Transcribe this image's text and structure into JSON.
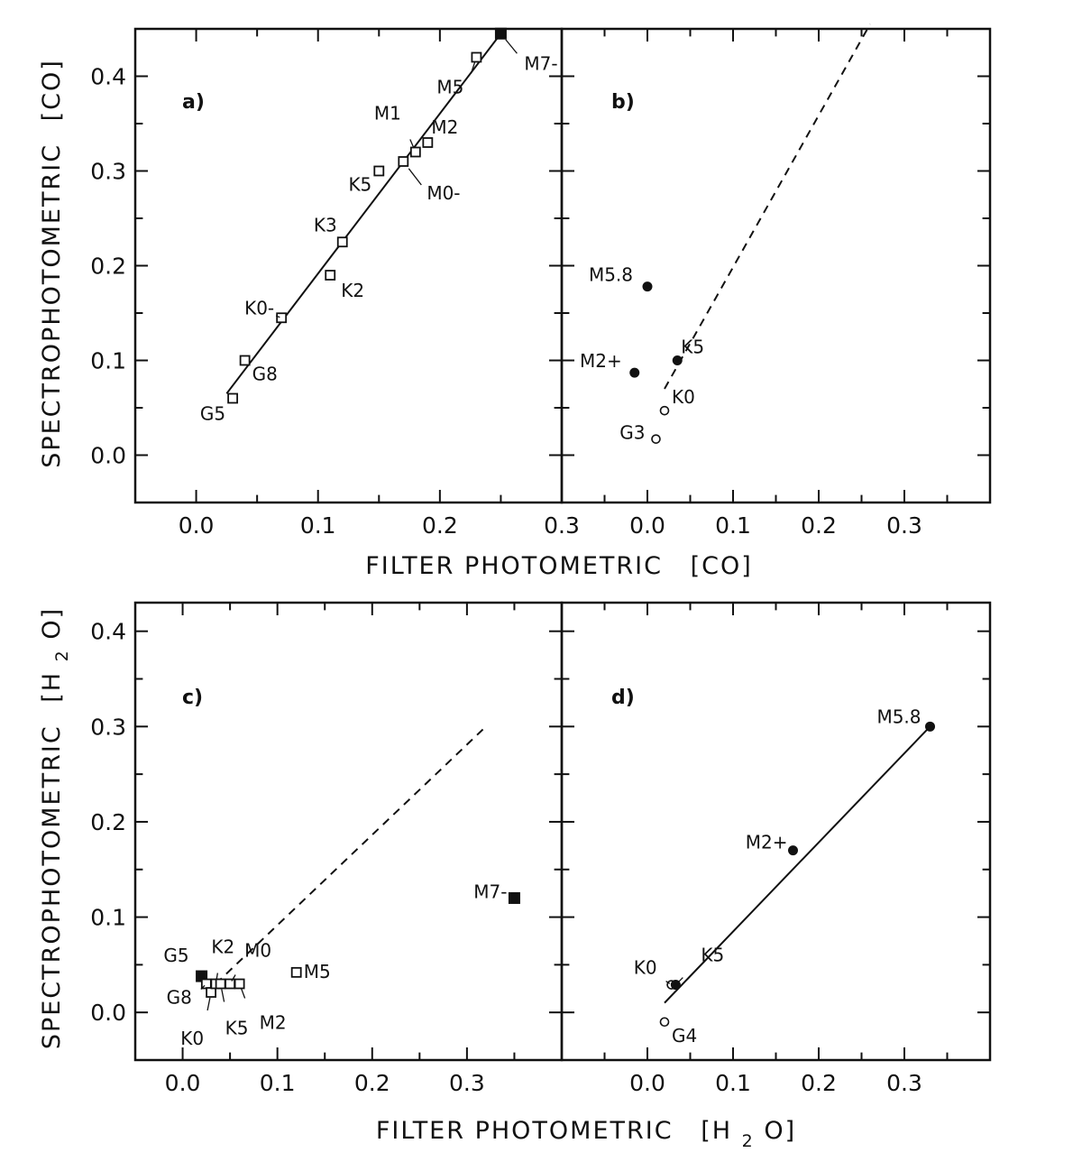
{
  "figure": {
    "top_xlabel": {
      "main": "FILTER PHOTOMETRIC",
      "unit": "[CO]"
    },
    "bottom_xlabel": {
      "main": "FILTER PHOTOMETRIC",
      "unit_prefix": "[H",
      "unit_sub": "2",
      "unit_suffix": "O]"
    },
    "top_ylabel": {
      "main": "SPECTROPHOTOMETRIC",
      "unit": "[CO]"
    },
    "bottom_ylabel": {
      "main": "SPECTROPHOTOMETRIC",
      "unit_prefix": "[H",
      "unit_sub": "2",
      "unit_suffix": "O]"
    }
  },
  "chart_data": [
    {
      "type": "scatter",
      "panel": "a)",
      "xlabel": "FILTER PHOTOMETRIC [CO]",
      "ylabel": "SPECTROPHOTOMETRIC [CO]",
      "xlim": [
        -0.05,
        0.3
      ],
      "ylim": [
        -0.05,
        0.45
      ],
      "xticks": [
        "0.0",
        "0.1",
        "0.2",
        "0.3"
      ],
      "yticks": [
        "0.0",
        "0.1",
        "0.2",
        "0.3",
        "0.4"
      ],
      "fit_line": {
        "style": "solid",
        "x": [
          0.025,
          0.25
        ],
        "y": [
          0.065,
          0.445
        ]
      },
      "points": [
        {
          "label": "G5",
          "x": 0.03,
          "y": 0.06,
          "marker": "open-square"
        },
        {
          "label": "G8",
          "x": 0.04,
          "y": 0.1,
          "marker": "open-square"
        },
        {
          "label": "K0-",
          "x": 0.07,
          "y": 0.145,
          "marker": "open-square"
        },
        {
          "label": "K2",
          "x": 0.11,
          "y": 0.19,
          "marker": "open-square"
        },
        {
          "label": "K3",
          "x": 0.12,
          "y": 0.225,
          "marker": "open-square"
        },
        {
          "label": "K5",
          "x": 0.15,
          "y": 0.3,
          "marker": "open-square"
        },
        {
          "label": "M0-",
          "x": 0.17,
          "y": 0.31,
          "marker": "open-square"
        },
        {
          "label": "M1",
          "x": 0.18,
          "y": 0.32,
          "marker": "open-square"
        },
        {
          "label": "M2",
          "x": 0.19,
          "y": 0.33,
          "marker": "open-square"
        },
        {
          "label": "M5",
          "x": 0.23,
          "y": 0.42,
          "marker": "open-square"
        },
        {
          "label": "M7-",
          "x": 0.25,
          "y": 0.445,
          "marker": "filled-square"
        }
      ]
    },
    {
      "type": "scatter",
      "panel": "b)",
      "xlabel": "FILTER PHOTOMETRIC [CO]",
      "ylabel": "SPECTROPHOTOMETRIC [CO]",
      "xlim": [
        -0.1,
        0.4
      ],
      "ylim": [
        -0.05,
        0.45
      ],
      "xticks": [
        "0.0",
        "0.1",
        "0.2",
        "0.3"
      ],
      "fit_line": {
        "style": "dashed",
        "x": [
          0.02,
          0.26
        ],
        "y": [
          0.07,
          0.455
        ]
      },
      "points": [
        {
          "label": "G3",
          "x": 0.01,
          "y": 0.017,
          "marker": "open-circle"
        },
        {
          "label": "K0",
          "x": 0.02,
          "y": 0.047,
          "marker": "open-circle"
        },
        {
          "label": "K5",
          "x": 0.035,
          "y": 0.1,
          "marker": "filled-circle"
        },
        {
          "label": "M2+",
          "x": -0.015,
          "y": 0.087,
          "marker": "filled-circle"
        },
        {
          "label": "M5.8",
          "x": 0.0,
          "y": 0.178,
          "marker": "filled-circle"
        }
      ]
    },
    {
      "type": "scatter",
      "panel": "c)",
      "xlabel": "FILTER PHOTOMETRIC [H2O]",
      "ylabel": "SPECTROPHOTOMETRIC [H2O]",
      "xlim": [
        -0.05,
        0.4
      ],
      "ylim": [
        -0.05,
        0.43
      ],
      "xticks": [
        "0.0",
        "0.1",
        "0.2",
        "0.3"
      ],
      "yticks": [
        "0.0",
        "0.1",
        "0.2",
        "0.3",
        "0.4"
      ],
      "fit_line": {
        "style": "dashed",
        "x": [
          0.035,
          0.32
        ],
        "y": [
          0.03,
          0.3
        ]
      },
      "points": [
        {
          "label": "G5",
          "x": 0.02,
          "y": 0.038,
          "marker": "filled-square"
        },
        {
          "label": "G8",
          "x": 0.025,
          "y": 0.03,
          "marker": "open-square"
        },
        {
          "label": "K0",
          "x": 0.03,
          "y": 0.021,
          "marker": "open-square"
        },
        {
          "label": "K2",
          "x": 0.035,
          "y": 0.03,
          "marker": "open-square"
        },
        {
          "label": "K5",
          "x": 0.04,
          "y": 0.03,
          "marker": "open-square"
        },
        {
          "label": "M0",
          "x": 0.05,
          "y": 0.03,
          "marker": "open-square"
        },
        {
          "label": "M2",
          "x": 0.06,
          "y": 0.03,
          "marker": "open-square"
        },
        {
          "label": "M5",
          "x": 0.12,
          "y": 0.042,
          "marker": "open-square"
        },
        {
          "label": "M7-",
          "x": 0.35,
          "y": 0.12,
          "marker": "filled-square"
        }
      ]
    },
    {
      "type": "scatter",
      "panel": "d)",
      "xlabel": "FILTER PHOTOMETRIC [H2O]",
      "ylabel": "SPECTROPHOTOMETRIC [H2O]",
      "xlim": [
        -0.1,
        0.4
      ],
      "ylim": [
        -0.05,
        0.43
      ],
      "xticks": [
        "0.0",
        "0.1",
        "0.2",
        "0.3"
      ],
      "fit_line": {
        "style": "solid",
        "x": [
          0.02,
          0.33
        ],
        "y": [
          0.01,
          0.3
        ]
      },
      "points": [
        {
          "label": "G4",
          "x": 0.02,
          "y": -0.01,
          "marker": "open-circle"
        },
        {
          "label": "K0",
          "x": 0.028,
          "y": 0.029,
          "marker": "open-circle"
        },
        {
          "label": "K5",
          "x": 0.033,
          "y": 0.029,
          "marker": "filled-circle"
        },
        {
          "label": "M2+",
          "x": 0.17,
          "y": 0.17,
          "marker": "filled-circle"
        },
        {
          "label": "M5.8",
          "x": 0.33,
          "y": 0.3,
          "marker": "filled-circle"
        }
      ]
    }
  ]
}
